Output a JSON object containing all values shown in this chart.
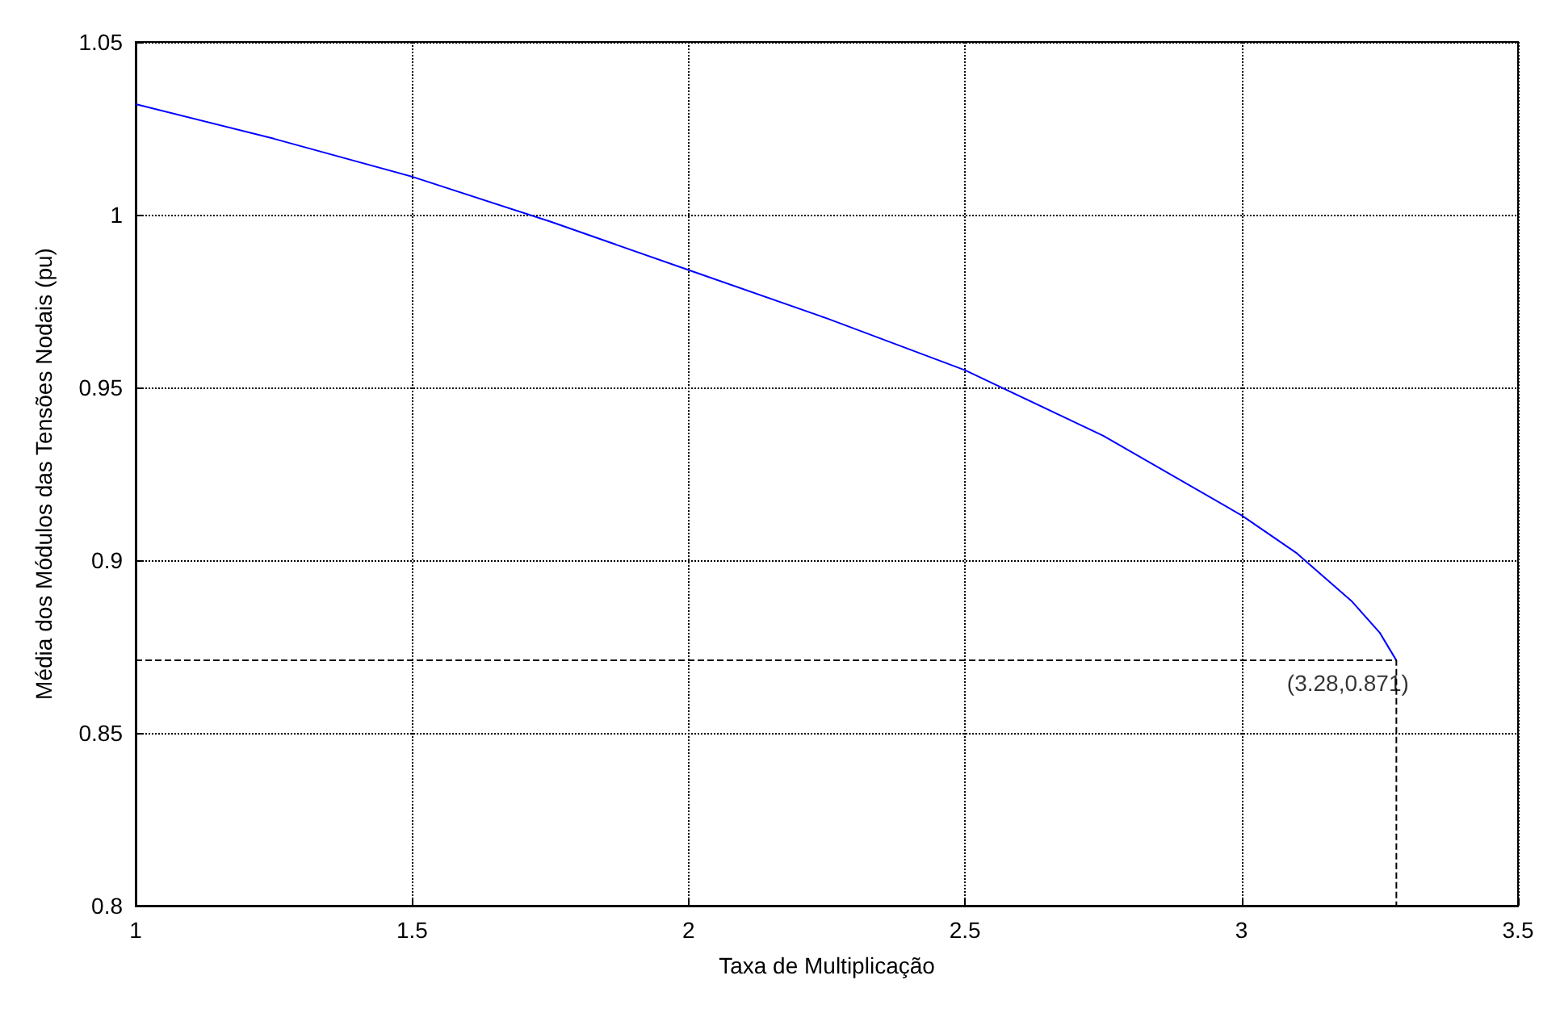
{
  "chart_data": {
    "type": "line",
    "xlabel": "Taxa de Multiplicação",
    "ylabel": "Média dos Módulos das Tensões Nodais (pu)",
    "xlim": [
      1,
      3.5
    ],
    "xticks": [
      1,
      1.5,
      2,
      2.5,
      3,
      3.5
    ],
    "ylim": [
      0.8,
      1.05
    ],
    "yticks": [
      0.8,
      0.85,
      0.9,
      0.95,
      1,
      1.05
    ],
    "grid": true,
    "marker": "none",
    "series": [
      {
        "color": "#0000ff",
        "line_style": "solid",
        "x": [
          1,
          1.25,
          1.5,
          1.75,
          2,
          2.25,
          2.5,
          2.75,
          3,
          3.1,
          3.2,
          3.25,
          3.28
        ],
        "values": [
          1.032,
          1.022,
          1.011,
          0.998,
          0.984,
          0.97,
          0.955,
          0.936,
          0.913,
          0.902,
          0.888,
          0.879,
          0.871
        ]
      },
      {
        "color": "#000000",
        "line_style": "dashed",
        "x": [
          1,
          3.28,
          3.28
        ],
        "values": [
          0.871,
          0.871,
          0.8
        ]
      }
    ],
    "annotations": [
      {
        "text": "(3.28,0.871)",
        "x": 3.28,
        "y": 0.871
      }
    ]
  }
}
